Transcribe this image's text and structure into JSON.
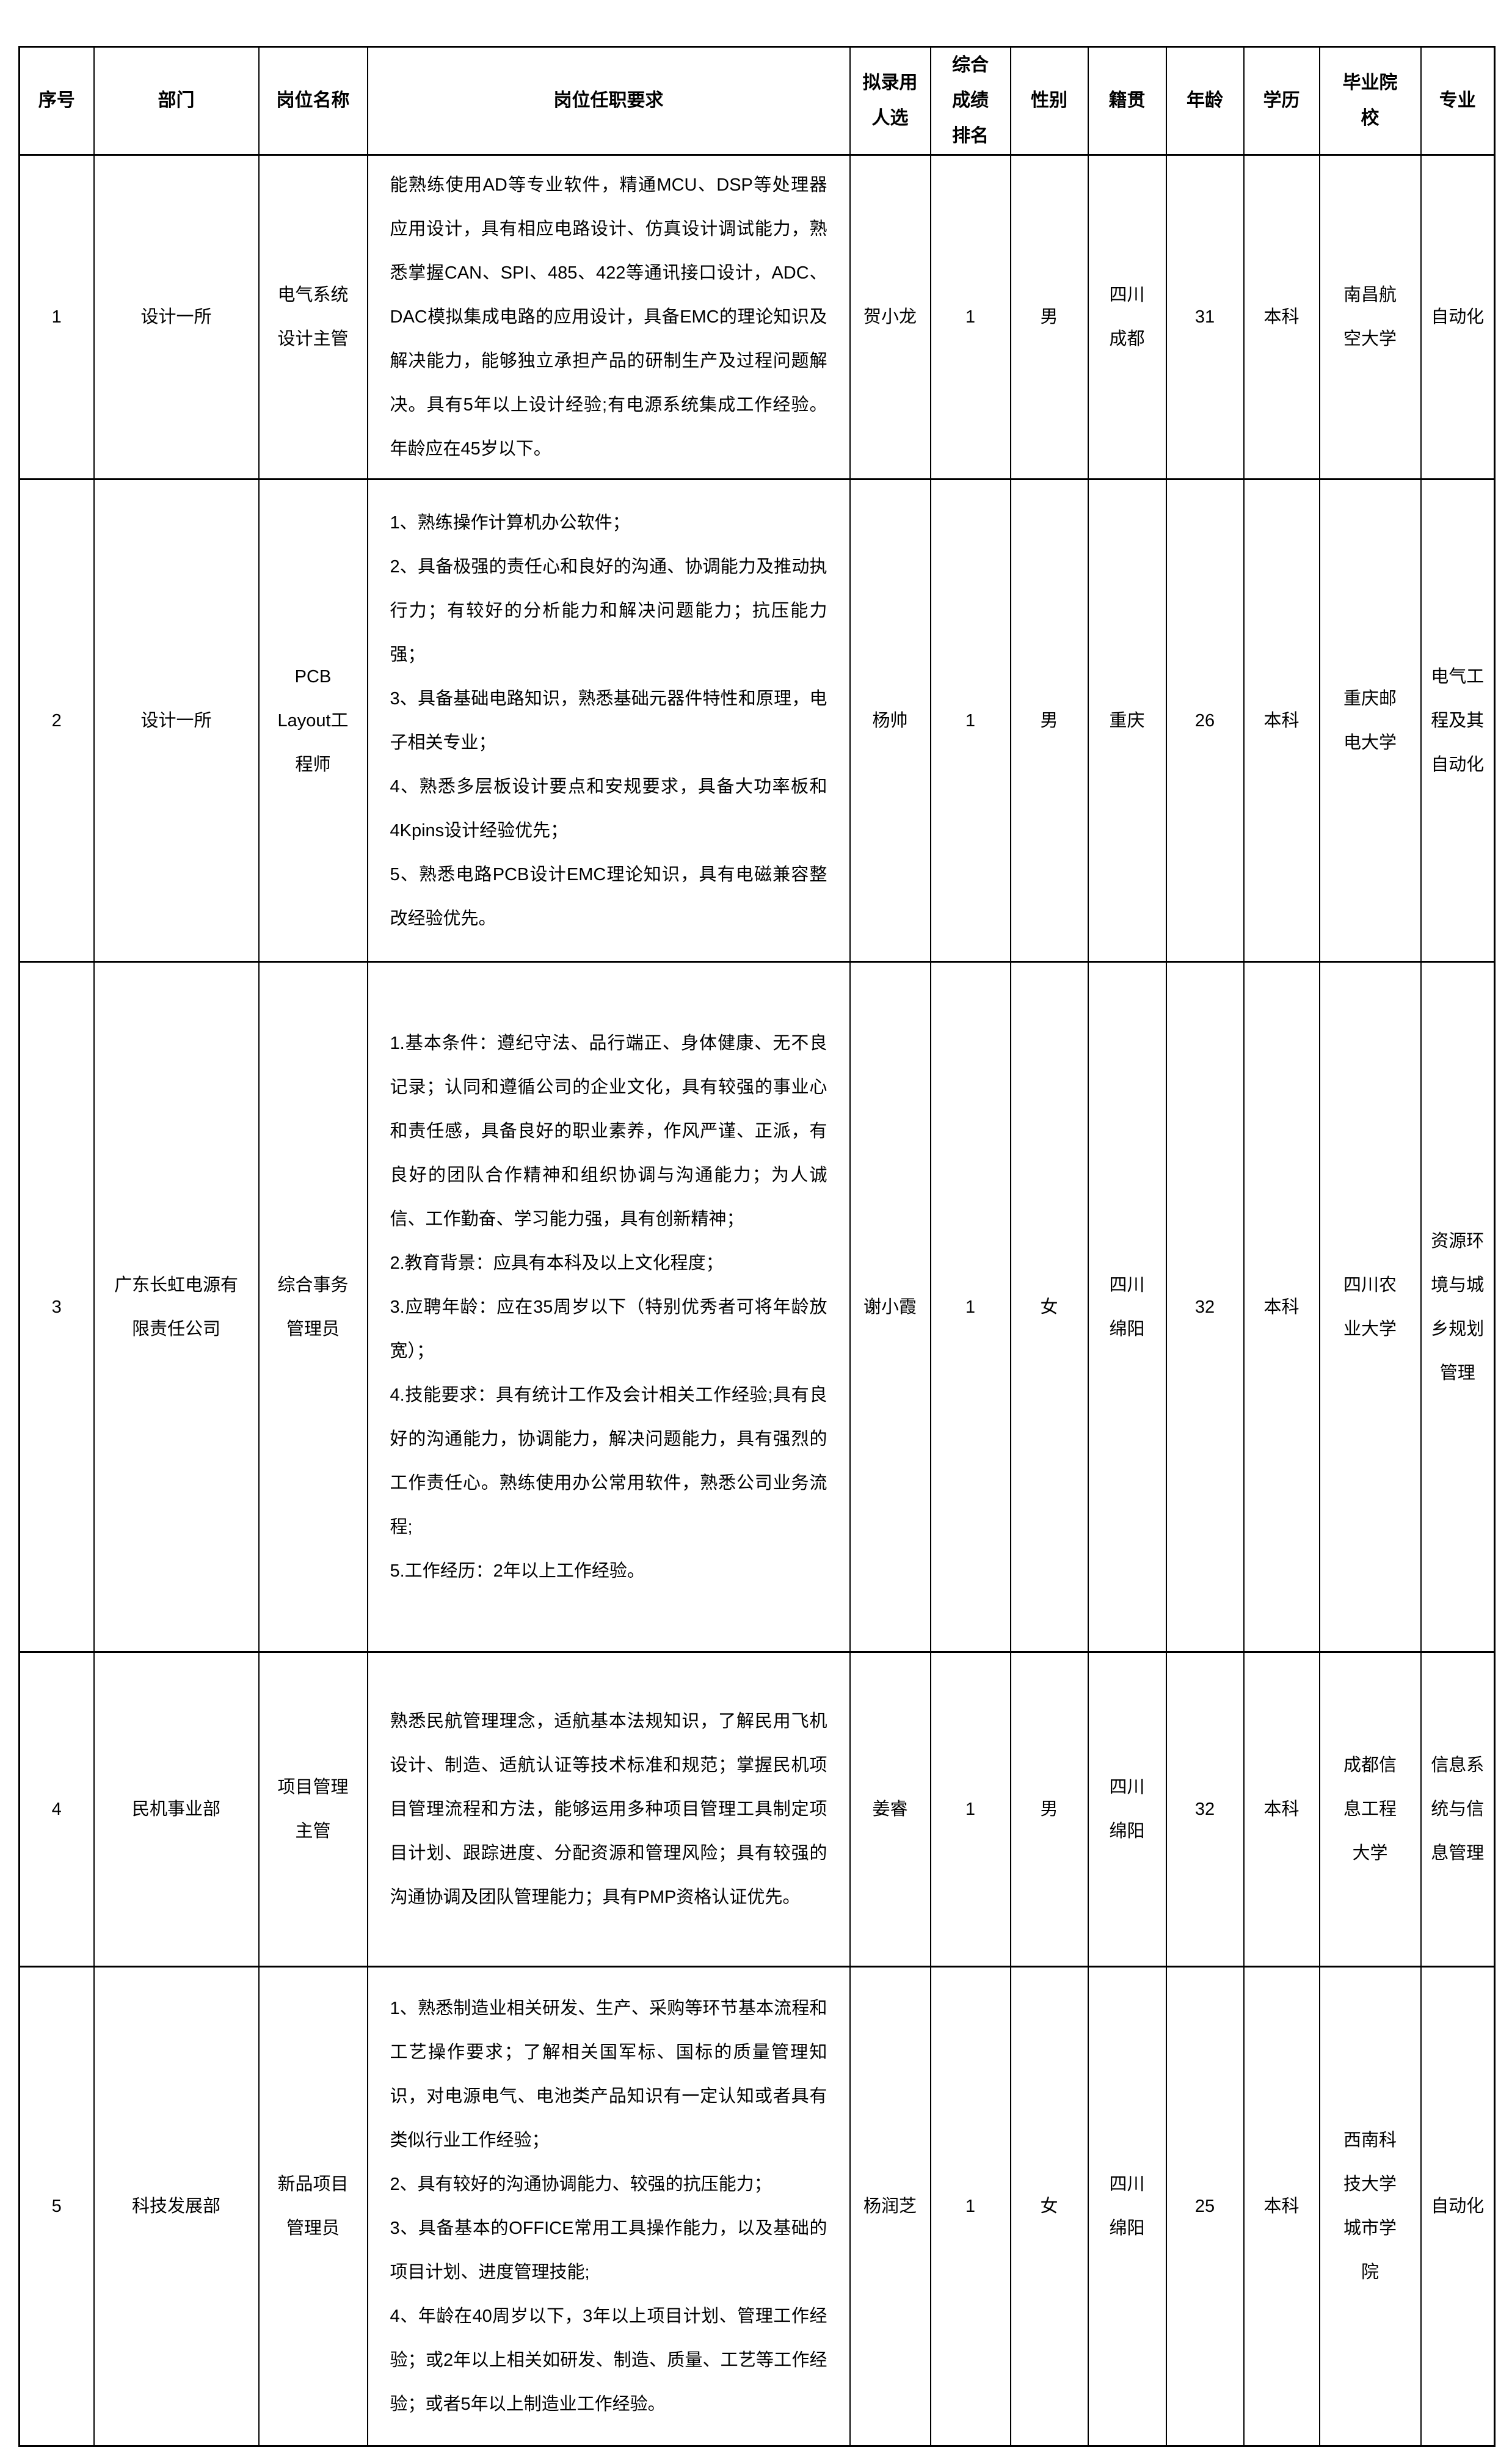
{
  "colors": {
    "background": "#ffffff",
    "text": "#000000",
    "border": "#000000"
  },
  "table": {
    "headers": [
      "序号",
      "部门",
      "岗位名称",
      "岗位任职要求",
      "拟录用人选",
      "综合成绩排名",
      "性别",
      "籍贯",
      "年龄",
      "学历",
      "毕业院校",
      "专业"
    ],
    "rows": [
      {
        "no": "1",
        "department": "设计一所",
        "position": "电气系统设计主管",
        "requirements": [
          "能熟练使用AD等专业软件，精通MCU、DSP等处理器应用设计，具有相应电路设计、仿真设计调试能力，熟悉掌握CAN、SPI、485、422等通讯接口设计，ADC、DAC模拟集成电路的应用设计，具备EMC的理论知识及解决能力，能够独立承担产品的研制生产及过程问题解决。具有5年以上设计经验;有电源系统集成工作经验。年龄应在45岁以下。"
        ],
        "candidate": "贺小龙",
        "rank": "1",
        "gender": "男",
        "hometown": "四川成都",
        "age": "31",
        "education": "本科",
        "school": "南昌航空大学",
        "major": "自动化"
      },
      {
        "no": "2",
        "department": "设计一所",
        "position": "PCB Layout工程师",
        "requirements": [
          "1、熟练操作计算机办公软件；",
          "2、具备极强的责任心和良好的沟通、协调能力及推动执行力；有较好的分析能力和解决问题能力；抗压能力强；",
          "3、具备基础电路知识，熟悉基础元器件特性和原理，电子相关专业；",
          "4、熟悉多层板设计要点和安规要求，具备大功率板和4Kpins设计经验优先；",
          "5、熟悉电路PCB设计EMC理论知识，具有电磁兼容整改经验优先。"
        ],
        "candidate": "杨帅",
        "rank": "1",
        "gender": "男",
        "hometown": "重庆",
        "age": "26",
        "education": "本科",
        "school": "重庆邮电大学",
        "major": "电气工程及其自动化"
      },
      {
        "no": "3",
        "department": "广东长虹电源有限责任公司",
        "position": "综合事务管理员",
        "requirements": [
          "1.基本条件：遵纪守法、品行端正、身体健康、无不良记录；认同和遵循公司的企业文化，具有较强的事业心和责任感，具备良好的职业素养，作风严谨、正派，有良好的团队合作精神和组织协调与沟通能力；为人诚信、工作勤奋、学习能力强，具有创新精神；",
          "2.教育背景：应具有本科及以上文化程度；",
          "3.应聘年龄：应在35周岁以下（特别优秀者可将年龄放宽）；",
          "4.技能要求：具有统计工作及会计相关工作经验;具有良好的沟通能力，协调能力，解决问题能力，具有强烈的工作责任心。熟练使用办公常用软件，熟悉公司业务流程;",
          "5.工作经历：2年以上工作经验。"
        ],
        "candidate": "谢小霞",
        "rank": "1",
        "gender": "女",
        "hometown": "四川绵阳",
        "age": "32",
        "education": "本科",
        "school": "四川农业大学",
        "major": "资源环境与城乡规划管理"
      },
      {
        "no": "4",
        "department": "民机事业部",
        "position": "项目管理主管",
        "requirements": [
          "熟悉民航管理理念，适航基本法规知识，了解民用飞机设计、制造、适航认证等技术标准和规范；掌握民机项目管理流程和方法，能够运用多种项目管理工具制定项目计划、跟踪进度、分配资源和管理风险；具有较强的沟通协调及团队管理能力；具有PMP资格认证优先。"
        ],
        "candidate": "姜睿",
        "rank": "1",
        "gender": "男",
        "hometown": "四川绵阳",
        "age": "32",
        "education": "本科",
        "school": "成都信息工程大学",
        "major": "信息系统与信息管理"
      },
      {
        "no": "5",
        "department": "科技发展部",
        "position": "新品项目管理员",
        "requirements": [
          "1、熟悉制造业相关研发、生产、采购等环节基本流程和工艺操作要求；了解相关国军标、国标的质量管理知识，对电源电气、电池类产品知识有一定认知或者具有类似行业工作经验；",
          "2、具有较好的沟通协调能力、较强的抗压能力；",
          "3、具备基本的OFFICE常用工具操作能力，以及基础的项目计划、进度管理技能;",
          "4、年龄在40周岁以下，3年以上项目计划、管理工作经验；或2年以上相关如研发、制造、质量、工艺等工作经验；或者5年以上制造业工作经验。"
        ],
        "candidate": "杨润芝",
        "rank": "1",
        "gender": "女",
        "hometown": "四川绵阳",
        "age": "25",
        "education": "本科",
        "school": "西南科技大学城市学院",
        "major": "自动化"
      }
    ]
  }
}
